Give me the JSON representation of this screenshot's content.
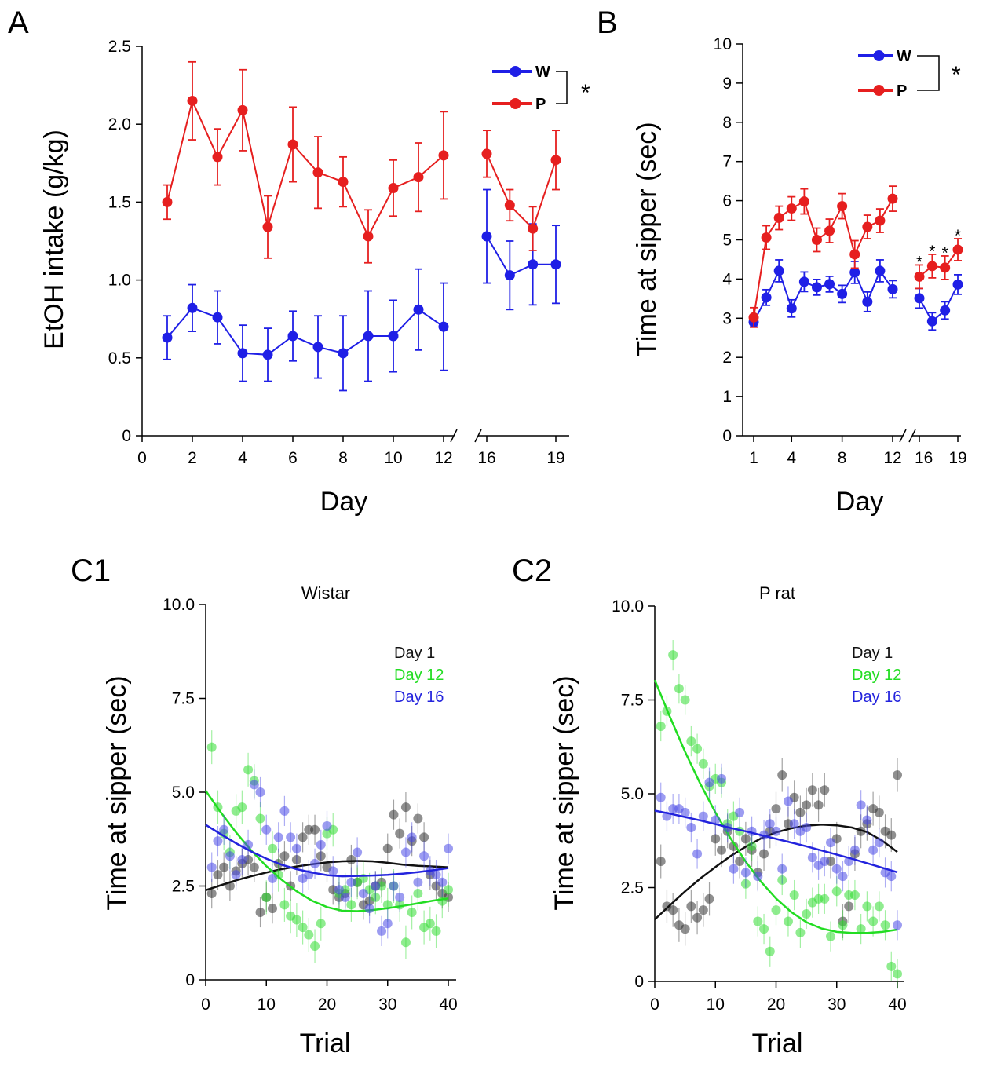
{
  "colors": {
    "W": "#1f1fe6",
    "P": "#e61f1f",
    "day1": "#333333",
    "day12": "#33dd33",
    "day16": "#4a4ae6"
  },
  "chart_data": [
    {
      "id": "A",
      "panel_label": "A",
      "type": "line",
      "title": "",
      "xlabel": "Day",
      "ylabel": "EtOH intake (g/kg)",
      "xlim": [
        0,
        19
      ],
      "ylim": [
        0,
        2.5
      ],
      "x_ticks": [
        "0",
        "2",
        "4",
        "6",
        "8",
        "10",
        "12",
        "16",
        "19"
      ],
      "y_ticks": [
        "0",
        "0.5",
        "1.0",
        "1.5",
        "2.0",
        "2.5"
      ],
      "axis_break": [
        12.4,
        15.5
      ],
      "legend": {
        "entries": [
          "W",
          "P"
        ],
        "significance": "*"
      },
      "series": [
        {
          "name": "W",
          "color_key": "W",
          "segments": [
            {
              "x": [
                1,
                2,
                3,
                4,
                5,
                6,
                7,
                8,
                9,
                10,
                11,
                12
              ],
              "y": [
                0.63,
                0.82,
                0.76,
                0.53,
                0.52,
                0.64,
                0.57,
                0.53,
                0.64,
                0.64,
                0.81,
                0.7
              ],
              "err": [
                0.14,
                0.15,
                0.17,
                0.18,
                0.17,
                0.16,
                0.2,
                0.24,
                0.29,
                0.23,
                0.26,
                0.28
              ]
            },
            {
              "x": [
                16,
                17,
                18,
                19
              ],
              "y": [
                1.28,
                1.03,
                1.1,
                1.1
              ],
              "err": [
                0.3,
                0.22,
                0.26,
                0.25
              ]
            }
          ]
        },
        {
          "name": "P",
          "color_key": "P",
          "segments": [
            {
              "x": [
                1,
                2,
                3,
                4,
                5,
                6,
                7,
                8,
                9,
                10,
                11,
                12
              ],
              "y": [
                1.5,
                2.15,
                1.79,
                2.09,
                1.34,
                1.87,
                1.69,
                1.63,
                1.28,
                1.59,
                1.66,
                1.8
              ],
              "err": [
                0.11,
                0.25,
                0.18,
                0.26,
                0.2,
                0.24,
                0.23,
                0.16,
                0.17,
                0.18,
                0.22,
                0.28
              ]
            },
            {
              "x": [
                16,
                17,
                18,
                19
              ],
              "y": [
                1.81,
                1.48,
                1.33,
                1.77
              ],
              "err": [
                0.15,
                0.1,
                0.14,
                0.19
              ]
            }
          ]
        }
      ]
    },
    {
      "id": "B",
      "panel_label": "B",
      "type": "line",
      "title": "",
      "xlabel": "Day",
      "ylabel": "Time at sipper (sec)",
      "xlim": [
        1,
        19
      ],
      "ylim": [
        0,
        10
      ],
      "x_ticks": [
        "1",
        "4",
        "8",
        "12",
        "16",
        "19"
      ],
      "y_ticks": [
        "0",
        "1",
        "2",
        "3",
        "4",
        "5",
        "6",
        "7",
        "8",
        "9",
        "10"
      ],
      "axis_break": [
        12.4,
        15.5
      ],
      "legend": {
        "entries": [
          "W",
          "P"
        ],
        "significance": "*"
      },
      "annotations": {
        "x": [
          16,
          17,
          18,
          19
        ],
        "text": "*"
      },
      "series": [
        {
          "name": "W",
          "color_key": "W",
          "segments": [
            {
              "x": [
                1,
                2,
                3,
                4,
                5,
                6,
                7,
                8,
                9,
                10,
                11,
                12
              ],
              "y": [
                2.9,
                3.53,
                4.21,
                3.25,
                3.93,
                3.79,
                3.87,
                3.62,
                4.17,
                3.42,
                4.21,
                3.74
              ],
              "err": [
                0.12,
                0.2,
                0.28,
                0.22,
                0.25,
                0.2,
                0.2,
                0.22,
                0.28,
                0.25,
                0.28,
                0.22
              ]
            },
            {
              "x": [
                16,
                17,
                18,
                19
              ],
              "y": [
                3.51,
                2.92,
                3.2,
                3.86
              ],
              "err": [
                0.25,
                0.22,
                0.22,
                0.25
              ]
            }
          ]
        },
        {
          "name": "P",
          "color_key": "P",
          "segments": [
            {
              "x": [
                1,
                2,
                3,
                4,
                5,
                6,
                7,
                8,
                9,
                10,
                11,
                12
              ],
              "y": [
                3.02,
                5.06,
                5.56,
                5.8,
                5.98,
                5.0,
                5.23,
                5.86,
                4.63,
                5.33,
                5.49,
                6.05
              ],
              "err": [
                0.25,
                0.3,
                0.3,
                0.3,
                0.32,
                0.3,
                0.3,
                0.32,
                0.35,
                0.3,
                0.3,
                0.32
              ]
            },
            {
              "x": [
                16,
                17,
                18,
                19
              ],
              "y": [
                4.06,
                4.33,
                4.29,
                4.75
              ],
              "err": [
                0.3,
                0.3,
                0.3,
                0.28
              ]
            }
          ]
        }
      ]
    },
    {
      "id": "C1",
      "panel_label": "C1",
      "type": "scatter",
      "title": "Wistar",
      "xlabel": "Trial",
      "ylabel": "Time at sipper (sec)",
      "xlim": [
        0,
        40
      ],
      "ylim": [
        0,
        10
      ],
      "x_ticks": [
        "0",
        "10",
        "20",
        "30",
        "40"
      ],
      "y_ticks": [
        "0",
        "2.5",
        "5.0",
        "7.5",
        "10.0"
      ],
      "legend": {
        "entries": [
          "Day 1",
          "Day 12",
          "Day 16"
        ]
      },
      "series": [
        {
          "name": "Day 1",
          "color_key": "day1",
          "x": [
            1,
            2,
            3,
            4,
            5,
            6,
            7,
            8,
            9,
            10,
            11,
            12,
            13,
            14,
            15,
            16,
            17,
            18,
            19,
            20,
            21,
            22,
            23,
            24,
            25,
            26,
            27,
            28,
            29,
            30,
            31,
            32,
            33,
            34,
            35,
            36,
            37,
            38,
            39,
            40
          ],
          "y": [
            2.3,
            2.8,
            3.0,
            2.5,
            2.9,
            3.1,
            3.2,
            3.0,
            1.8,
            2.2,
            1.9,
            3.1,
            3.3,
            2.5,
            3.2,
            3.8,
            4.0,
            4.0,
            3.3,
            3.0,
            2.4,
            2.2,
            2.3,
            3.2,
            2.6,
            2.0,
            2.1,
            2.5,
            2.6,
            3.5,
            4.4,
            3.9,
            4.6,
            3.7,
            4.3,
            3.8,
            2.8,
            2.5,
            2.3,
            2.2
          ],
          "err": 0.4,
          "fit": [
            2.39,
            2.52,
            2.65,
            2.76,
            2.86,
            2.95,
            3.02,
            3.08,
            3.13,
            3.16,
            3.17,
            3.16,
            3.12,
            3.07,
            3.04,
            3.02,
            3.0
          ]
        },
        {
          "name": "Day 12",
          "color_key": "day12",
          "x": [
            1,
            2,
            3,
            4,
            5,
            6,
            7,
            8,
            9,
            10,
            11,
            12,
            13,
            14,
            15,
            16,
            17,
            18,
            19,
            20,
            21,
            22,
            23,
            24,
            25,
            26,
            27,
            28,
            29,
            30,
            31,
            32,
            33,
            34,
            35,
            36,
            37,
            38,
            39,
            40
          ],
          "y": [
            6.2,
            4.6,
            3.9,
            3.4,
            4.5,
            4.6,
            5.6,
            5.3,
            4.3,
            2.2,
            3.5,
            2.8,
            2.0,
            1.7,
            1.6,
            1.4,
            1.2,
            0.9,
            1.5,
            3.9,
            4.0,
            2.3,
            2.4,
            2.0,
            2.6,
            2.7,
            2.4,
            2.2,
            2.5,
            2.0,
            2.5,
            2.0,
            1.0,
            1.8,
            2.3,
            1.4,
            1.5,
            1.3,
            2.1,
            2.4
          ],
          "err": 0.45,
          "fit": [
            5.04,
            4.46,
            3.93,
            3.45,
            3.03,
            2.67,
            2.36,
            2.11,
            1.94,
            1.84,
            1.83,
            1.86,
            1.91,
            1.97,
            2.04,
            2.11,
            2.17
          ]
        },
        {
          "name": "Day 16",
          "color_key": "day16",
          "x": [
            1,
            2,
            3,
            4,
            5,
            6,
            7,
            8,
            9,
            10,
            11,
            12,
            13,
            14,
            15,
            16,
            17,
            18,
            19,
            20,
            21,
            22,
            23,
            24,
            25,
            26,
            27,
            28,
            29,
            30,
            31,
            32,
            33,
            34,
            35,
            36,
            37,
            38,
            39,
            40
          ],
          "y": [
            3.0,
            3.7,
            4.0,
            3.3,
            2.8,
            3.2,
            3.6,
            5.2,
            5.0,
            4.0,
            2.7,
            3.8,
            4.5,
            3.8,
            3.5,
            2.7,
            2.8,
            3.1,
            3.6,
            4.1,
            2.9,
            2.4,
            2.2,
            2.6,
            3.4,
            2.3,
            1.9,
            2.5,
            1.3,
            1.5,
            2.5,
            2.2,
            3.4,
            3.8,
            2.6,
            3.3,
            2.9,
            2.8,
            2.6,
            3.5
          ],
          "err": 0.4,
          "fit": [
            4.13,
            3.88,
            3.64,
            3.42,
            3.23,
            3.07,
            2.95,
            2.86,
            2.79,
            2.76,
            2.77,
            2.78,
            2.8,
            2.83,
            2.87,
            2.92,
            2.98
          ]
        }
      ]
    },
    {
      "id": "C2",
      "panel_label": "C2",
      "type": "scatter",
      "title": "P rat",
      "xlabel": "Trial",
      "ylabel": "Time at sipper (sec)",
      "xlim": [
        0,
        40
      ],
      "ylim": [
        0,
        10
      ],
      "x_ticks": [
        "0",
        "10",
        "20",
        "30",
        "40"
      ],
      "y_ticks": [
        "0",
        "2.5",
        "5.0",
        "7.5",
        "10.0"
      ],
      "legend": {
        "entries": [
          "Day 1",
          "Day 12",
          "Day 16"
        ]
      },
      "series": [
        {
          "name": "Day 1",
          "color_key": "day1",
          "x": [
            1,
            2,
            3,
            4,
            5,
            6,
            7,
            8,
            9,
            10,
            11,
            12,
            13,
            14,
            15,
            16,
            17,
            18,
            19,
            20,
            21,
            22,
            23,
            24,
            25,
            26,
            27,
            28,
            29,
            30,
            31,
            32,
            33,
            34,
            35,
            36,
            37,
            38,
            39,
            40
          ],
          "y": [
            3.2,
            2.0,
            1.9,
            1.5,
            1.4,
            2.0,
            1.7,
            1.9,
            2.2,
            3.8,
            3.5,
            4.0,
            3.6,
            3.2,
            3.8,
            3.5,
            2.9,
            3.4,
            4.0,
            4.6,
            5.5,
            4.2,
            4.9,
            4.5,
            4.7,
            5.1,
            4.7,
            5.1,
            3.2,
            3.8,
            1.6,
            2.0,
            3.4,
            4.0,
            4.2,
            4.6,
            4.5,
            4.0,
            3.9,
            5.5
          ],
          "err": 0.45,
          "fit": [
            1.65,
            2.03,
            2.4,
            2.74,
            3.05,
            3.34,
            3.59,
            3.81,
            3.97,
            4.08,
            4.15,
            4.18,
            4.16,
            4.1,
            3.98,
            3.75,
            3.45
          ]
        },
        {
          "name": "Day 12",
          "color_key": "day12",
          "x": [
            1,
            2,
            3,
            4,
            5,
            6,
            7,
            8,
            9,
            10,
            11,
            12,
            13,
            14,
            15,
            16,
            17,
            18,
            19,
            20,
            21,
            22,
            23,
            24,
            25,
            26,
            27,
            28,
            29,
            30,
            31,
            32,
            33,
            34,
            35,
            36,
            37,
            38,
            39,
            40
          ],
          "y": [
            6.8,
            7.2,
            8.7,
            7.8,
            7.5,
            6.4,
            6.2,
            5.8,
            5.2,
            5.4,
            5.3,
            4.2,
            4.4,
            4.0,
            2.6,
            3.6,
            1.6,
            1.4,
            0.8,
            1.9,
            2.7,
            1.6,
            2.3,
            1.3,
            1.8,
            2.1,
            2.2,
            2.2,
            1.2,
            2.4,
            1.5,
            2.3,
            2.3,
            1.4,
            2.0,
            1.6,
            2.0,
            1.5,
            0.4,
            0.2
          ],
          "err": 0.4,
          "fit": [
            8.03,
            7.05,
            6.12,
            5.27,
            4.5,
            3.81,
            3.19,
            2.66,
            2.21,
            1.85,
            1.58,
            1.41,
            1.32,
            1.29,
            1.29,
            1.32,
            1.38
          ]
        },
        {
          "name": "Day 16",
          "color_key": "day16",
          "x": [
            1,
            2,
            3,
            4,
            5,
            6,
            7,
            8,
            9,
            10,
            11,
            12,
            13,
            14,
            15,
            16,
            17,
            18,
            19,
            20,
            21,
            22,
            23,
            24,
            25,
            26,
            27,
            28,
            29,
            30,
            31,
            32,
            33,
            34,
            35,
            36,
            37,
            38,
            39,
            40
          ],
          "y": [
            4.9,
            4.4,
            4.6,
            4.6,
            4.5,
            4.1,
            3.4,
            4.4,
            5.3,
            4.3,
            5.4,
            4.1,
            3.0,
            4.5,
            2.9,
            4.0,
            2.8,
            3.9,
            4.2,
            4.0,
            3.0,
            4.8,
            4.2,
            4.0,
            4.1,
            3.3,
            3.1,
            3.2,
            3.7,
            3.0,
            2.8,
            3.2,
            3.5,
            4.7,
            4.3,
            3.5,
            3.7,
            2.9,
            2.8,
            1.5
          ],
          "err": 0.4,
          "fit": [
            4.55,
            4.47,
            4.38,
            4.29,
            4.19,
            4.09,
            4.0,
            3.9,
            3.8,
            3.7,
            3.6,
            3.49,
            3.38,
            3.27,
            3.15,
            3.03,
            2.91
          ]
        }
      ]
    }
  ]
}
